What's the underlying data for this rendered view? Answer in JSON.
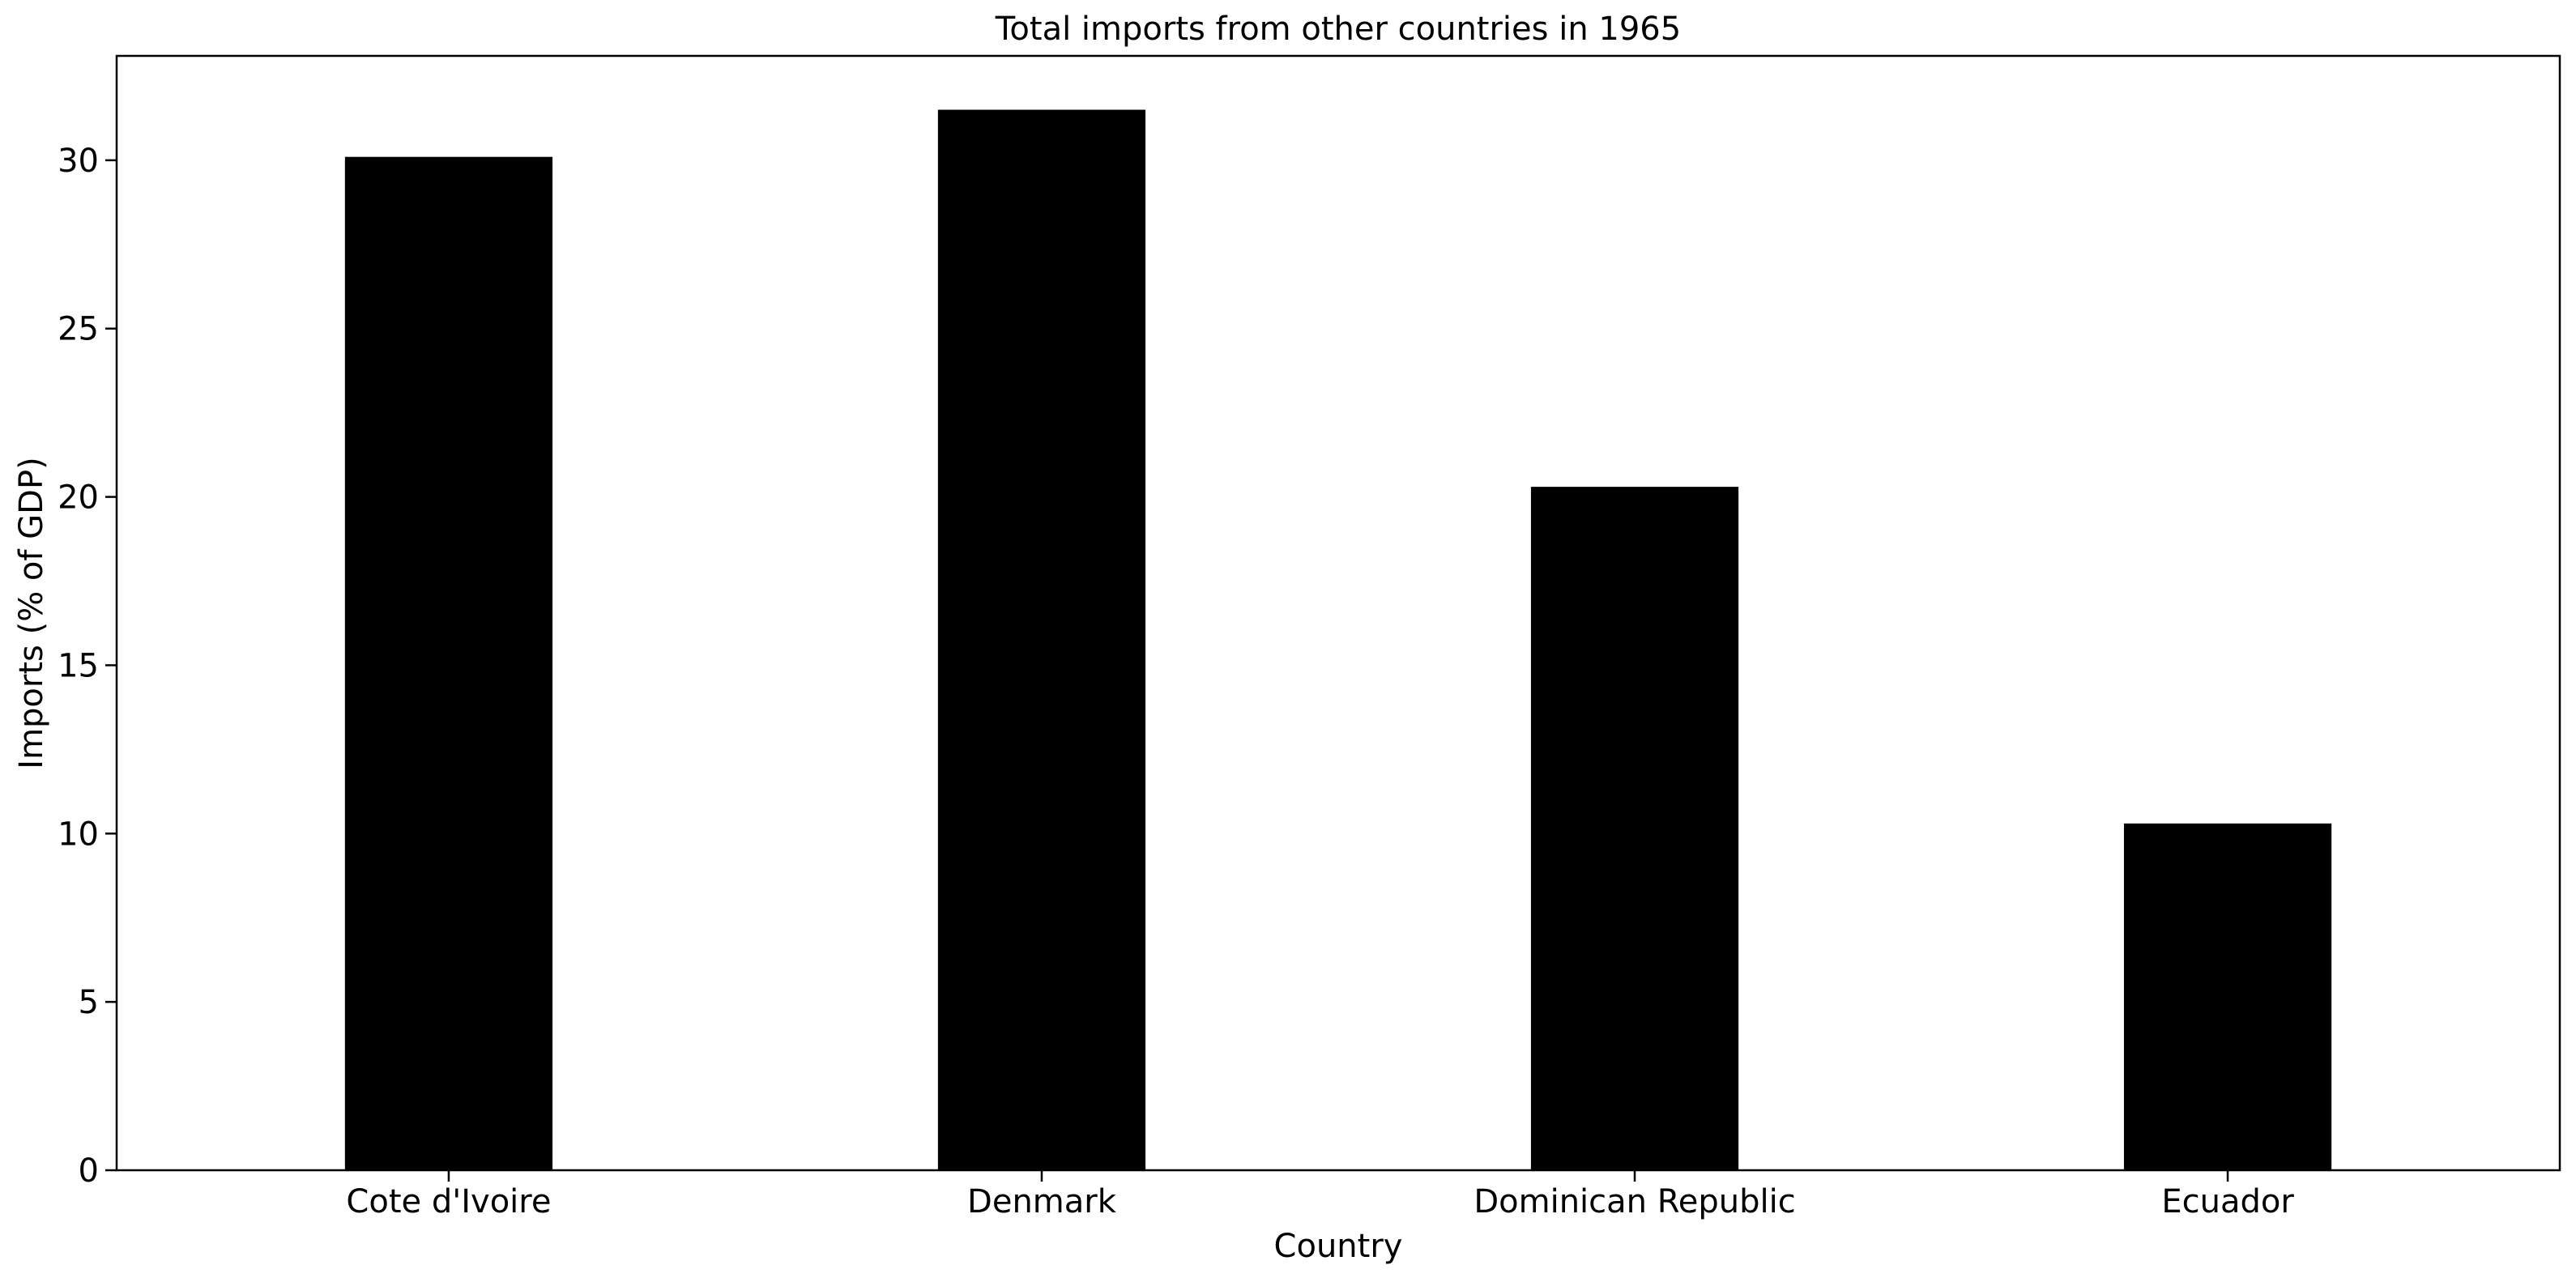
{
  "chart_data": {
    "type": "bar",
    "title": "Total imports from other countries in 1965",
    "xlabel": "Country",
    "ylabel": "Imports (% of GDP)",
    "categories": [
      "Cote d'Ivoire",
      "Denmark",
      "Dominican Republic",
      "Ecuador"
    ],
    "values": [
      30.1,
      31.5,
      20.3,
      10.3
    ],
    "ylim": [
      0,
      33.1
    ],
    "yticks": [
      "0",
      "5",
      "10",
      "15",
      "20",
      "25",
      "30"
    ],
    "bar_color": "#000000",
    "grid": false,
    "legend": "none"
  }
}
